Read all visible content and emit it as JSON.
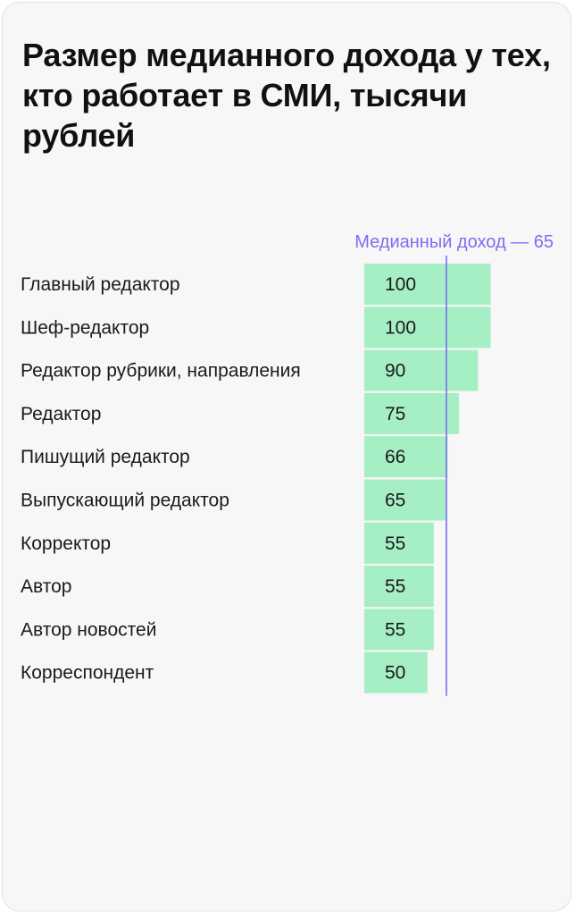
{
  "chart_data": {
    "type": "bar",
    "orientation": "horizontal",
    "title": "Размер медианного дохода у тех, кто работает в СМИ, тысячи рублей",
    "categories": [
      "Главный редактор",
      "Шеф-редактор",
      "Редактор рубрики, направления",
      "Редактор",
      "Пишущий редактор",
      "Выпускающий редактор",
      "Корректор",
      "Автор",
      "Автор новостей",
      "Корреспондент"
    ],
    "values": [
      100,
      100,
      90,
      75,
      66,
      65,
      55,
      55,
      55,
      50
    ],
    "reference_line": {
      "label": "Медианный доход — 65",
      "value": 65
    },
    "xlim": [
      0,
      100
    ],
    "grid": false,
    "legend": "none",
    "colors": {
      "bar": "#a6eec4",
      "median_line": "#7b6ff0",
      "text": "#1a1a1a",
      "background": "#f7f7f7"
    }
  }
}
